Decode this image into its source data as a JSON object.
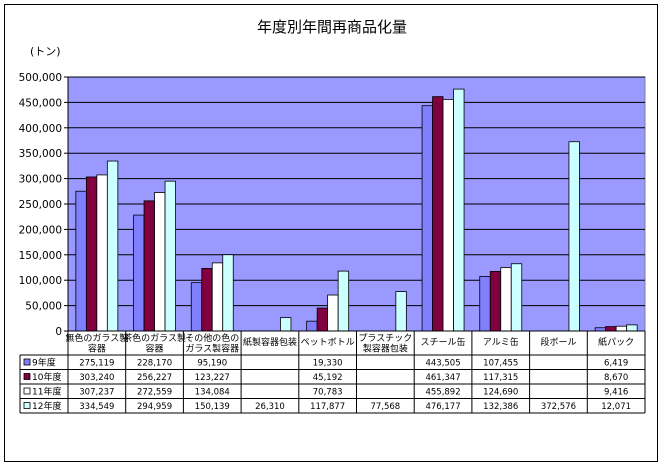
{
  "chart_data": {
    "type": "bar",
    "title": "年度別年間再商品化量",
    "ylabel": "(トン)",
    "ylim": [
      0,
      500000
    ],
    "ytick_step": 50000,
    "ytick_labels": [
      "0",
      "50,000",
      "100,000",
      "150,000",
      "200,000",
      "250,000",
      "300,000",
      "350,000",
      "400,000",
      "450,000",
      "500,000"
    ],
    "grid": true,
    "legend": "data-table-left",
    "categories": [
      [
        "無色のガラス製",
        "容器"
      ],
      [
        "茶色のガラス製",
        "容器"
      ],
      [
        "その他の色の",
        "ガラス製容器"
      ],
      [
        "紙製容器包装"
      ],
      [
        "ペットボトル"
      ],
      [
        "プラスチック",
        "製容器包装"
      ],
      [
        "スチール缶"
      ],
      [
        "アルミ缶"
      ],
      [
        "段ボール"
      ],
      [
        "紙パック"
      ]
    ],
    "series": [
      {
        "name": "9年度",
        "color": "#8080ff",
        "values": [
          275119,
          228170,
          95190,
          null,
          19330,
          null,
          443505,
          107455,
          null,
          6419
        ],
        "labels": [
          "275,119",
          "228,170",
          "95,190",
          "",
          "19,330",
          "",
          "443,505",
          "107,455",
          "",
          "6,419"
        ]
      },
      {
        "name": "10年度",
        "color": "#800040",
        "values": [
          303240,
          256227,
          123227,
          null,
          45192,
          null,
          461347,
          117315,
          null,
          8670
        ],
        "labels": [
          "303,240",
          "256,227",
          "123,227",
          "",
          "45,192",
          "",
          "461,347",
          "117,315",
          "",
          "8,670"
        ]
      },
      {
        "name": "11年度",
        "color": "#ffffff",
        "values": [
          307237,
          272559,
          134084,
          null,
          70783,
          null,
          455892,
          124690,
          null,
          9416
        ],
        "labels": [
          "307,237",
          "272,559",
          "134,084",
          "",
          "70,783",
          "",
          "455,892",
          "124,690",
          "",
          "9,416"
        ]
      },
      {
        "name": "12年度",
        "color": "#ccffff",
        "values": [
          334549,
          294959,
          150139,
          26310,
          117877,
          77568,
          476177,
          132386,
          372576,
          12071
        ],
        "labels": [
          "334,549",
          "294,959",
          "150,139",
          "26,310",
          "117,877",
          "77,568",
          "476,177",
          "132,386",
          "372,576",
          "12,071"
        ]
      }
    ],
    "plot_background": "#9999ff"
  }
}
